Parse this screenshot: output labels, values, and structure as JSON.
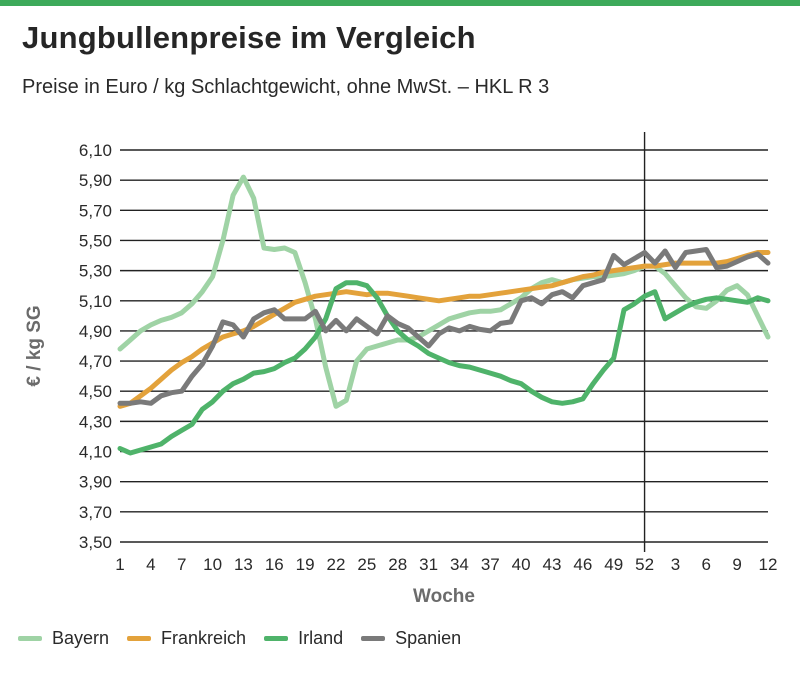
{
  "title": "Jungbullenpreise im Vergleich",
  "subtitle": "Preise in Euro / kg Schlachtgewicht, ohne MwSt. – HKL R 3",
  "chart_data": {
    "type": "line",
    "xlabel": "Woche",
    "ylabel": "€ / kg SG",
    "ylim": [
      3.5,
      6.1
    ],
    "y_ticks": [
      "6,10",
      "5,90",
      "5,70",
      "5,50",
      "5,30",
      "5,10",
      "4,90",
      "4,70",
      "4,50",
      "4,30",
      "4,10",
      "3,90",
      "3,70",
      "3,50"
    ],
    "x_ticks": [
      "1",
      "4",
      "7",
      "10",
      "13",
      "16",
      "19",
      "22",
      "25",
      "28",
      "31",
      "34",
      "37",
      "40",
      "43",
      "46",
      "49",
      "52",
      "3",
      "6",
      "9",
      "12"
    ],
    "x_range": [
      1,
      64
    ],
    "year_divider_after_week": 52,
    "grid": true,
    "legend_position": "bottom",
    "series": [
      {
        "name": "Bayern",
        "color": "#9fd3a5",
        "x": [
          1,
          2,
          3,
          4,
          5,
          6,
          7,
          8,
          9,
          10,
          11,
          12,
          13,
          14,
          15,
          16,
          17,
          18,
          19,
          20,
          21,
          22,
          23,
          24,
          25,
          26,
          27,
          28,
          29,
          30,
          31,
          32,
          33,
          34,
          35,
          36,
          37,
          38,
          39,
          40,
          41,
          42,
          43,
          44,
          45,
          46,
          47,
          48,
          49,
          50,
          51,
          52,
          53,
          54,
          55,
          56,
          57,
          58,
          59,
          60,
          61,
          62,
          63,
          64
        ],
        "values": [
          4.78,
          4.84,
          4.9,
          4.94,
          4.97,
          4.99,
          5.02,
          5.08,
          5.16,
          5.26,
          5.5,
          5.8,
          5.92,
          5.78,
          5.45,
          5.44,
          5.45,
          5.42,
          5.22,
          4.98,
          4.66,
          4.4,
          4.44,
          4.7,
          4.78,
          4.8,
          4.82,
          4.84,
          4.84,
          4.86,
          4.9,
          4.94,
          4.98,
          5.0,
          5.02,
          5.03,
          5.03,
          5.04,
          5.08,
          5.12,
          5.18,
          5.22,
          5.24,
          5.22,
          5.24,
          5.25,
          5.26,
          5.26,
          5.27,
          5.28,
          5.3,
          5.33,
          5.33,
          5.28,
          5.2,
          5.12,
          5.06,
          5.05,
          5.1,
          5.17,
          5.2,
          5.14,
          5.0,
          4.86
        ]
      },
      {
        "name": "Frankreich",
        "color": "#e3a23b",
        "x": [
          1,
          2,
          3,
          4,
          5,
          6,
          7,
          8,
          9,
          10,
          11,
          12,
          13,
          14,
          15,
          16,
          17,
          18,
          19,
          20,
          21,
          22,
          23,
          24,
          25,
          26,
          27,
          28,
          29,
          30,
          31,
          32,
          33,
          34,
          35,
          36,
          37,
          38,
          39,
          40,
          41,
          42,
          43,
          44,
          45,
          46,
          47,
          48,
          49,
          50,
          51,
          52,
          53,
          54,
          55,
          56,
          57,
          58,
          59,
          60,
          61,
          62,
          63,
          64
        ],
        "values": [
          4.4,
          4.42,
          4.47,
          4.52,
          4.58,
          4.64,
          4.69,
          4.73,
          4.78,
          4.82,
          4.86,
          4.88,
          4.9,
          4.93,
          4.97,
          5.01,
          5.05,
          5.09,
          5.11,
          5.13,
          5.14,
          5.15,
          5.16,
          5.15,
          5.14,
          5.15,
          5.15,
          5.14,
          5.13,
          5.12,
          5.11,
          5.1,
          5.11,
          5.12,
          5.13,
          5.13,
          5.14,
          5.15,
          5.16,
          5.17,
          5.18,
          5.19,
          5.2,
          5.22,
          5.24,
          5.26,
          5.27,
          5.29,
          5.3,
          5.31,
          5.32,
          5.33,
          5.33,
          5.34,
          5.35,
          5.35,
          5.35,
          5.35,
          5.35,
          5.36,
          5.38,
          5.4,
          5.42,
          5.42
        ]
      },
      {
        "name": "Irland",
        "color": "#4fb36a",
        "x": [
          1,
          2,
          3,
          4,
          5,
          6,
          7,
          8,
          9,
          10,
          11,
          12,
          13,
          14,
          15,
          16,
          17,
          18,
          19,
          20,
          21,
          22,
          23,
          24,
          25,
          26,
          27,
          28,
          29,
          30,
          31,
          32,
          33,
          34,
          35,
          36,
          37,
          38,
          39,
          40,
          41,
          42,
          43,
          44,
          45,
          46,
          47,
          48,
          49,
          50,
          51,
          52,
          53,
          54,
          55,
          56,
          57,
          58,
          59,
          60,
          61,
          62,
          63,
          64
        ],
        "values": [
          4.12,
          4.09,
          4.11,
          4.13,
          4.15,
          4.2,
          4.24,
          4.28,
          4.38,
          4.43,
          4.5,
          4.55,
          4.58,
          4.62,
          4.63,
          4.65,
          4.69,
          4.72,
          4.78,
          4.86,
          4.98,
          5.18,
          5.22,
          5.22,
          5.2,
          5.12,
          5.0,
          4.9,
          4.84,
          4.8,
          4.75,
          4.72,
          4.69,
          4.67,
          4.66,
          4.64,
          4.62,
          4.6,
          4.57,
          4.55,
          4.5,
          4.46,
          4.43,
          4.42,
          4.43,
          4.45,
          4.55,
          4.64,
          4.72,
          5.04,
          5.08,
          5.13,
          5.16,
          4.98,
          5.02,
          5.06,
          5.09,
          5.11,
          5.12,
          5.11,
          5.1,
          5.09,
          5.12,
          5.1
        ]
      },
      {
        "name": "Spanien",
        "color": "#7a7a7a",
        "x": [
          1,
          2,
          3,
          4,
          5,
          6,
          7,
          8,
          9,
          10,
          11,
          12,
          13,
          14,
          15,
          16,
          17,
          18,
          19,
          20,
          21,
          22,
          23,
          24,
          25,
          26,
          27,
          28,
          29,
          30,
          31,
          32,
          33,
          34,
          35,
          36,
          37,
          38,
          39,
          40,
          41,
          42,
          43,
          44,
          45,
          46,
          47,
          48,
          49,
          50,
          51,
          52,
          53,
          54,
          55,
          56,
          57,
          58,
          59,
          60,
          61,
          62,
          63,
          64
        ],
        "values": [
          4.42,
          4.42,
          4.43,
          4.42,
          4.47,
          4.49,
          4.5,
          4.6,
          4.68,
          4.8,
          4.96,
          4.94,
          4.86,
          4.98,
          5.02,
          5.04,
          4.98,
          4.98,
          4.98,
          5.03,
          4.9,
          4.97,
          4.9,
          4.98,
          4.93,
          4.88,
          5.0,
          4.95,
          4.92,
          4.86,
          4.8,
          4.88,
          4.92,
          4.9,
          4.93,
          4.91,
          4.9,
          4.95,
          4.96,
          5.1,
          5.12,
          5.08,
          5.14,
          5.16,
          5.12,
          5.2,
          5.22,
          5.24,
          5.4,
          5.34,
          5.38,
          5.42,
          5.35,
          5.43,
          5.32,
          5.42,
          5.43,
          5.44,
          5.32,
          5.33,
          5.36,
          5.39,
          5.41,
          5.35
        ]
      }
    ]
  }
}
